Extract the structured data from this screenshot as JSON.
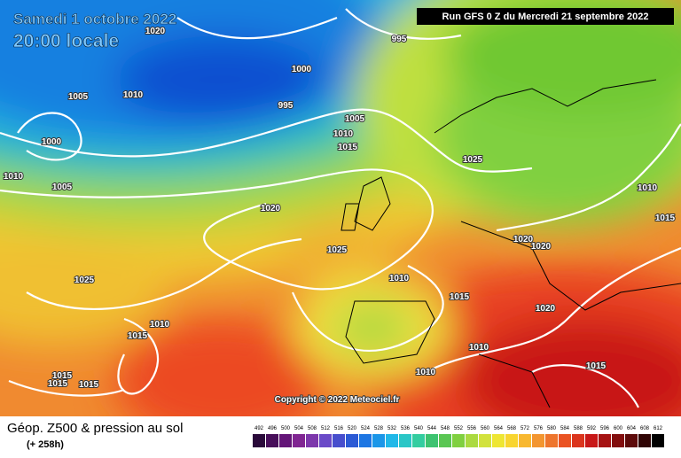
{
  "header": {
    "date": "Samedi 1 octobre 2022",
    "time": "20:00 locale",
    "run": "Run GFS 0 Z du Mercredi 21 septembre 2022"
  },
  "map": {
    "copyright": "Copyright © 2022 Meteociel.fr",
    "isobar_labels": [
      1020,
      995,
      1000,
      1005,
      1010,
      995,
      1005,
      1010,
      1015,
      1000,
      1010,
      1005,
      1025,
      1020,
      1010,
      1015,
      1025,
      1020,
      1020,
      1025,
      1010,
      1015,
      1020,
      1015,
      1010,
      1010,
      1010,
      1015,
      1015,
      1015,
      1015
    ]
  },
  "footer": {
    "title": "Géop. Z500 & pression au sol",
    "lead": "(+ 258h)",
    "scale": [
      492,
      496,
      500,
      504,
      508,
      512,
      516,
      520,
      524,
      528,
      532,
      536,
      540,
      544,
      548,
      552,
      556,
      560,
      564,
      568,
      572,
      576,
      580,
      584,
      588,
      592,
      596,
      600,
      604,
      608,
      612
    ]
  }
}
